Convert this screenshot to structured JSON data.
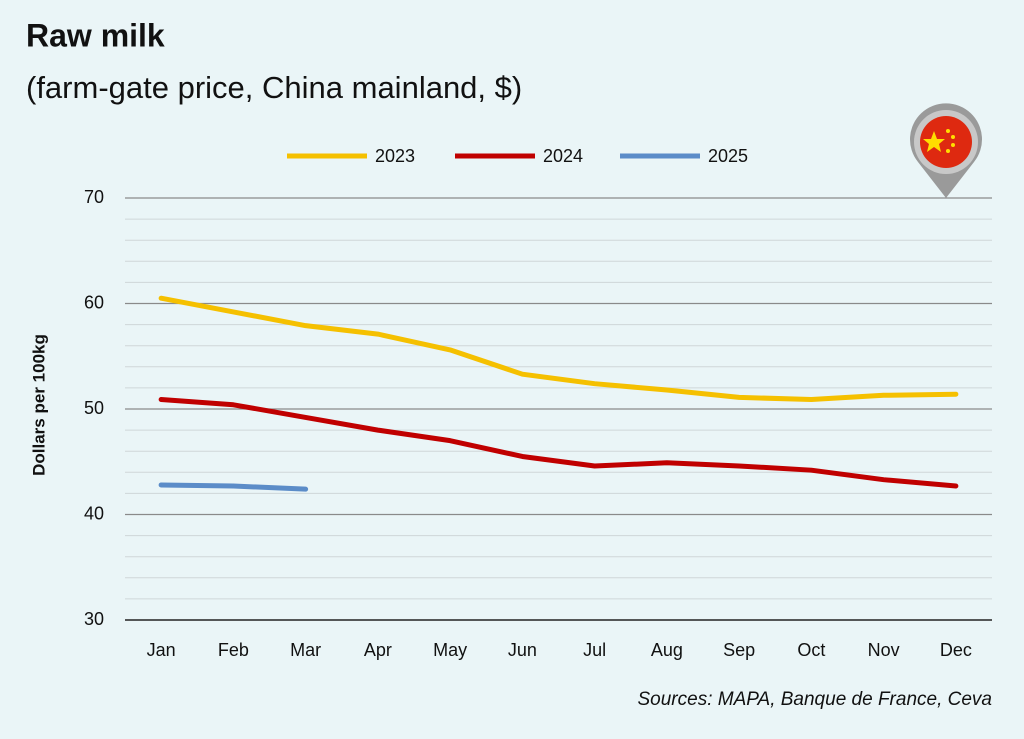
{
  "chart_data": {
    "type": "line",
    "title": "Raw milk",
    "subtitle": "(farm-gate price, China mainland, $)",
    "ylabel": "Dollars per 100kg",
    "source": "Sources: MAPA, Banque de France, Ceva",
    "categories": [
      "Jan",
      "Feb",
      "Mar",
      "Apr",
      "May",
      "Jun",
      "Jul",
      "Aug",
      "Sep",
      "Oct",
      "Nov",
      "Dec"
    ],
    "series": [
      {
        "name": "2023",
        "color": "#f5c000",
        "values": [
          60.5,
          59.2,
          57.9,
          57.1,
          55.6,
          53.3,
          52.4,
          51.8,
          51.1,
          50.9,
          51.3,
          51.4
        ]
      },
      {
        "name": "2024",
        "color": "#c00000",
        "values": [
          50.9,
          50.4,
          49.2,
          48.0,
          47.0,
          45.5,
          44.6,
          44.9,
          44.6,
          44.2,
          43.3,
          42.7
        ]
      },
      {
        "name": "2025",
        "color": "#5b8cc8",
        "values": [
          42.8,
          42.7,
          42.4,
          null,
          null,
          null,
          null,
          null,
          null,
          null,
          null,
          null
        ]
      }
    ],
    "ylim": [
      30,
      70
    ],
    "yticks": [
      30,
      40,
      50,
      60,
      70
    ],
    "minor_yticks": [
      32,
      34,
      36,
      38,
      42,
      44,
      46,
      48,
      52,
      54,
      56,
      58,
      62,
      64,
      66,
      68
    ],
    "grid": true,
    "legend": "top"
  }
}
